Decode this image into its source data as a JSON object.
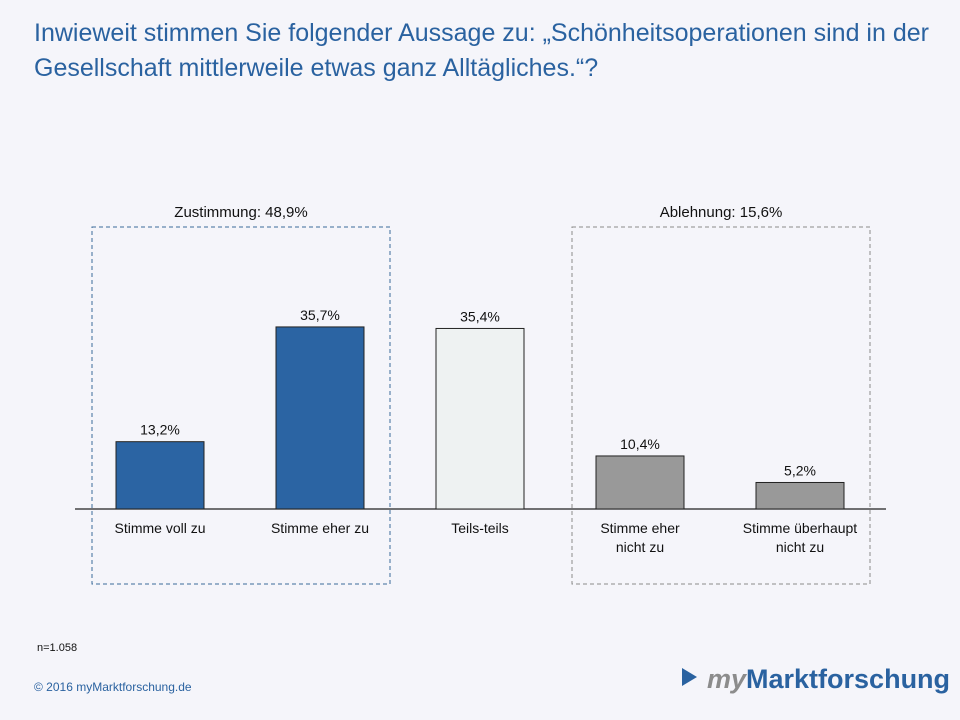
{
  "title": "Inwieweit stimmen Sie folgender Aussage zu: „Schönheitsoperationen sind in der Gesellschaft mittlerweile etwas ganz Alltägliches.“?",
  "chart_data": {
    "type": "bar",
    "categories": [
      [
        "Stimme voll zu"
      ],
      [
        "Stimme eher zu"
      ],
      [
        "Teils-teils"
      ],
      [
        "Stimme eher",
        "nicht zu"
      ],
      [
        "Stimme überhaupt",
        "nicht zu"
      ]
    ],
    "values": [
      13.2,
      35.7,
      35.4,
      10.4,
      5.2
    ],
    "data_labels": [
      "13,2%",
      "35,7%",
      "35,4%",
      "10,4%",
      "5,2%"
    ],
    "colors": [
      "#2b64a3",
      "#2b64a3",
      "#eef2f2",
      "#999999",
      "#999999"
    ],
    "groups": [
      {
        "label": "Zustimmung: 48,9%",
        "categories": [
          0,
          1
        ]
      },
      {
        "label": "Ablehnung: 15,6%",
        "categories": [
          3,
          4
        ]
      }
    ],
    "ylim": [
      0,
      40
    ],
    "grid": false
  },
  "sample": "n=1.058",
  "copyright": "© 2016  myMarktforschung.de",
  "logo": {
    "my": "my",
    "rest": "Marktforschung"
  }
}
